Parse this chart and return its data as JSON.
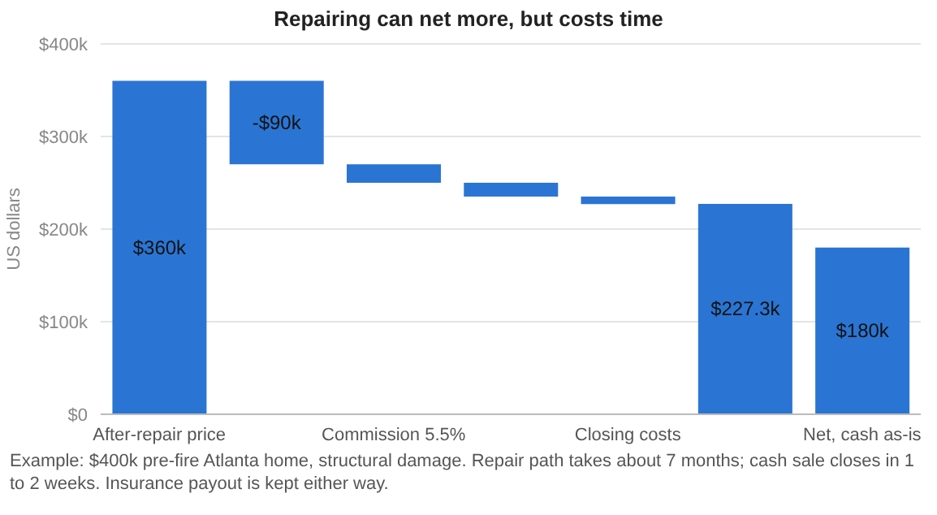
{
  "chart_data": {
    "type": "bar",
    "title": "Repairing can net more, but costs time",
    "ylabel": "US dollars",
    "categories": [
      "After-repair price",
      null,
      "Commission 5.5%",
      null,
      "Closing costs",
      null,
      "Net, cash as-is"
    ],
    "values": [
      360,
      -90,
      -20,
      -15,
      -8,
      227.3,
      180
    ],
    "base": [
      0,
      360,
      270,
      250,
      235,
      0,
      0
    ],
    "value_labels": [
      "$360k",
      "-$90k",
      null,
      null,
      null,
      "$227.3k",
      "$180k"
    ],
    "color": "#2a75d3",
    "ylim": [
      0,
      400
    ],
    "yticks": [
      {
        "value": 0,
        "label": "$0"
      },
      {
        "value": 100,
        "label": "$100k"
      },
      {
        "value": 200,
        "label": "$200k"
      },
      {
        "value": 300,
        "label": "$300k"
      },
      {
        "value": 400,
        "label": "$400k"
      }
    ],
    "grid": "y",
    "annotations": [
      "Example: $400k pre-fire Atlanta home, structural damage. Repair path takes about 7 months; cash sale closes in 1 to 2 weeks. Insurance payout is kept either way."
    ]
  }
}
